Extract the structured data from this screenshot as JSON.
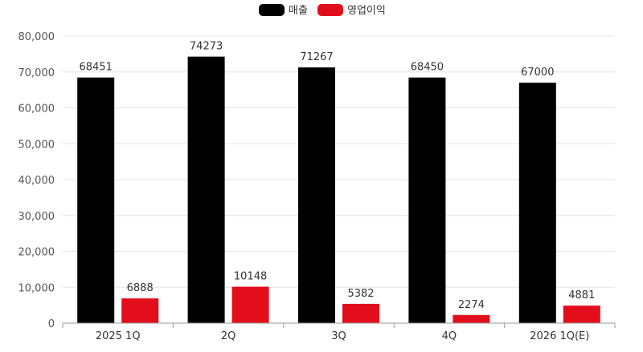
{
  "chart_data": {
    "type": "bar",
    "categories": [
      "2025 1Q",
      "2Q",
      "3Q",
      "4Q",
      "2026 1Q(E)"
    ],
    "series": [
      {
        "name": "매출",
        "color": "#000000",
        "values": [
          68451,
          74273,
          71267,
          68450,
          67000
        ]
      },
      {
        "name": "영업이익",
        "color": "#e30e1b",
        "values": [
          6888,
          10148,
          5382,
          2274,
          4881
        ]
      }
    ],
    "ylim": [
      0,
      80000
    ],
    "yticks": [
      "0",
      "10,000",
      "20,000",
      "30,000",
      "40,000",
      "50,000",
      "60,000",
      "70,000",
      "80,000"
    ],
    "ytick_values": [
      0,
      10000,
      20000,
      30000,
      40000,
      50000,
      60000,
      70000,
      80000
    ],
    "grid": true,
    "legend_position": "top-center"
  }
}
